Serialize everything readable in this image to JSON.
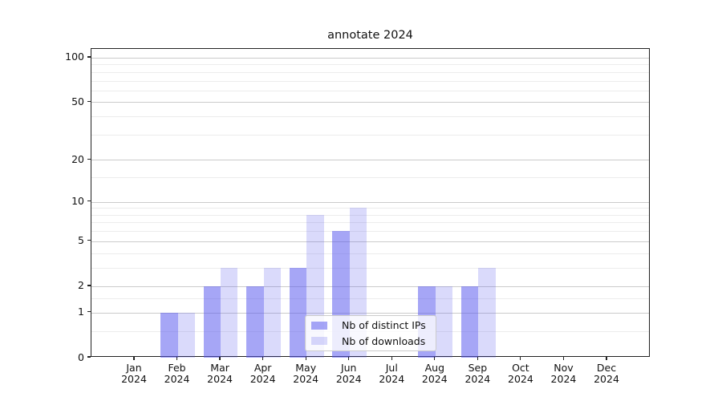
{
  "chart_data": {
    "type": "bar",
    "title": "annotate 2024",
    "categories": [
      "Jan",
      "Feb",
      "Mar",
      "Apr",
      "May",
      "Jun",
      "Jul",
      "Aug",
      "Sep",
      "Oct",
      "Nov",
      "Dec"
    ],
    "category_year": "2024",
    "series": [
      {
        "name": "Nb of distinct IPs",
        "color": "rgba(85,85,238,0.52)",
        "values": [
          0,
          1,
          2,
          2,
          3,
          6,
          0,
          2,
          2,
          0,
          0,
          0
        ]
      },
      {
        "name": "Nb of downloads",
        "color": "rgba(85,85,238,0.22)",
        "values": [
          0,
          1,
          3,
          3,
          8,
          9,
          0,
          2,
          3,
          0,
          0,
          0
        ]
      }
    ],
    "y_axis": {
      "scale": "log1p",
      "major_ticks": [
        0,
        1,
        2,
        5,
        10,
        20,
        50,
        100
      ],
      "minor_ticks": [
        0.5,
        1.5,
        3,
        4,
        6,
        7,
        8,
        9,
        15,
        30,
        40,
        60,
        70,
        80,
        90
      ],
      "range": [
        0,
        113
      ]
    },
    "x_axis": {
      "range": [
        "Jan 2024",
        "Dec 2024"
      ]
    },
    "legend": {
      "position": "lower-center"
    },
    "grid": {
      "major_color": "#cbcbcb",
      "minor_color": "#ececec"
    },
    "colors": {
      "bar_dark_effective": "#a7a7f3",
      "bar_light_effective": "#d9d9fa"
    }
  }
}
